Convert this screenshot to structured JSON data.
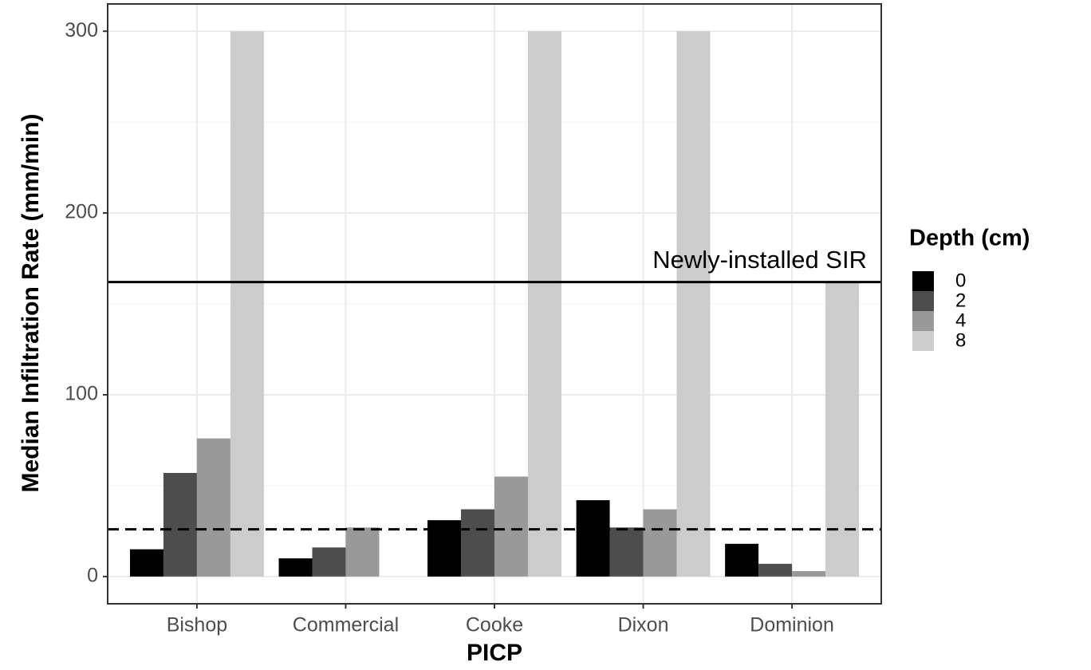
{
  "chart_data": {
    "type": "bar",
    "categories": [
      "Bishop",
      "Commercial",
      "Cooke",
      "Dixon",
      "Dominion"
    ],
    "series": [
      {
        "name": "0",
        "color": "#000000",
        "values": [
          15,
          10,
          31,
          42,
          18
        ]
      },
      {
        "name": "2",
        "color": "#4d4d4d",
        "values": [
          57,
          16,
          37,
          27,
          7
        ]
      },
      {
        "name": "4",
        "color": "#999999",
        "values": [
          76,
          27,
          55,
          37,
          3
        ]
      },
      {
        "name": "8",
        "color": "#cccccc",
        "values": [
          300,
          null,
          300,
          300,
          162
        ]
      }
    ],
    "ylim": [
      -15,
      315
    ],
    "yticks": [
      0,
      100,
      200,
      300
    ],
    "y_minor_grid": [
      50,
      150,
      250
    ],
    "grid": true,
    "xlabel": "PICP",
    "ylabel": "Median Infiltration Rate (mm/min)",
    "legend_title": "Depth (cm)",
    "legend_position": "right",
    "hlines": [
      {
        "value": 162,
        "style": "solid",
        "label": "Newly-installed SIR"
      },
      {
        "value": 26,
        "style": "dashed"
      }
    ]
  }
}
